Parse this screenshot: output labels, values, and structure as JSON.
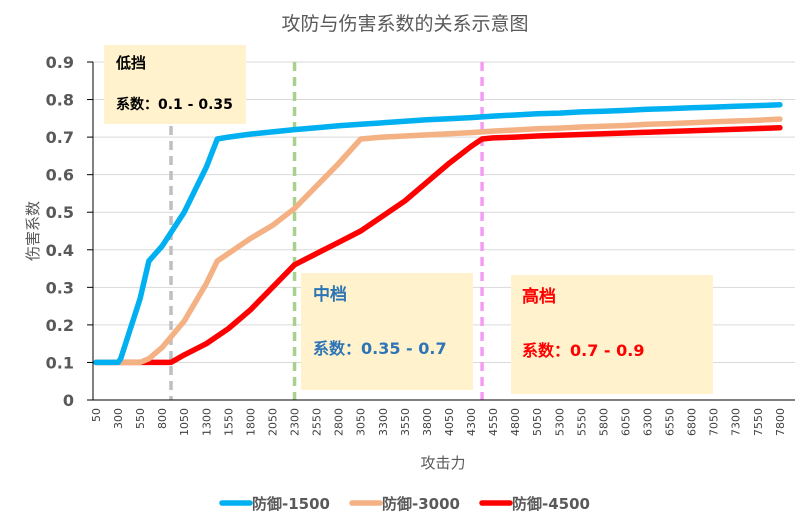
{
  "chart_data": {
    "type": "line",
    "title": "攻防与伤害系数的关系示意图",
    "xlabel": "攻击力",
    "ylabel": "伤害系数",
    "ylim": [
      0,
      0.9
    ],
    "yticks": [
      "0",
      "0.1",
      "0.2",
      "0.3",
      "0.4",
      "0.5",
      "0.6",
      "0.7",
      "0.8",
      "0.9"
    ],
    "ytick_values": [
      0,
      0.1,
      0.2,
      0.3,
      0.4,
      0.5,
      0.6,
      0.7,
      0.8,
      0.9
    ],
    "grid": true,
    "legend_position": "bottom",
    "categories": [
      "50",
      "300",
      "550",
      "800",
      "1050",
      "1300",
      "1550",
      "1800",
      "2050",
      "2300",
      "2550",
      "2800",
      "3050",
      "3300",
      "3550",
      "3800",
      "4050",
      "4300",
      "4550",
      "4800",
      "5050",
      "5300",
      "5550",
      "5800",
      "6050",
      "6300",
      "6550",
      "6800",
      "7050",
      "7300",
      "7550",
      "7800"
    ],
    "series": [
      {
        "name": "防御-1500",
        "color": "#00B0F0",
        "points": [
          [
            50,
            0.1
          ],
          [
            300,
            0.1
          ],
          [
            330,
            0.11
          ],
          [
            550,
            0.27
          ],
          [
            650,
            0.37
          ],
          [
            800,
            0.41
          ],
          [
            1050,
            0.5
          ],
          [
            1300,
            0.62
          ],
          [
            1425,
            0.695
          ],
          [
            1550,
            0.7
          ],
          [
            1800,
            0.708
          ],
          [
            2050,
            0.714
          ],
          [
            2300,
            0.72
          ],
          [
            2550,
            0.725
          ],
          [
            2800,
            0.73
          ],
          [
            3050,
            0.734
          ],
          [
            3300,
            0.738
          ],
          [
            3550,
            0.742
          ],
          [
            3800,
            0.746
          ],
          [
            4050,
            0.749
          ],
          [
            4300,
            0.752
          ],
          [
            4550,
            0.756
          ],
          [
            4800,
            0.759
          ],
          [
            5050,
            0.762
          ],
          [
            5300,
            0.764
          ],
          [
            5550,
            0.767
          ],
          [
            5800,
            0.769
          ],
          [
            6050,
            0.771
          ],
          [
            6300,
            0.774
          ],
          [
            6550,
            0.776
          ],
          [
            6800,
            0.778
          ],
          [
            7050,
            0.78
          ],
          [
            7300,
            0.782
          ],
          [
            7550,
            0.784
          ],
          [
            7800,
            0.786
          ]
        ]
      },
      {
        "name": "防御-3000",
        "color": "#F4B183",
        "points": [
          [
            50,
            0.1
          ],
          [
            550,
            0.1
          ],
          [
            650,
            0.11
          ],
          [
            800,
            0.14
          ],
          [
            1050,
            0.21
          ],
          [
            1300,
            0.31
          ],
          [
            1425,
            0.37
          ],
          [
            1550,
            0.39
          ],
          [
            1800,
            0.43
          ],
          [
            2050,
            0.465
          ],
          [
            2300,
            0.51
          ],
          [
            2550,
            0.57
          ],
          [
            2800,
            0.63
          ],
          [
            3050,
            0.695
          ],
          [
            3300,
            0.7
          ],
          [
            3550,
            0.703
          ],
          [
            3800,
            0.706
          ],
          [
            4050,
            0.709
          ],
          [
            4300,
            0.712
          ],
          [
            4550,
            0.716
          ],
          [
            4800,
            0.719
          ],
          [
            5050,
            0.722
          ],
          [
            5300,
            0.724
          ],
          [
            5550,
            0.727
          ],
          [
            5800,
            0.729
          ],
          [
            6050,
            0.731
          ],
          [
            6300,
            0.734
          ],
          [
            6550,
            0.736
          ],
          [
            6800,
            0.738
          ],
          [
            7050,
            0.741
          ],
          [
            7300,
            0.743
          ],
          [
            7550,
            0.745
          ],
          [
            7800,
            0.748
          ]
        ]
      },
      {
        "name": "防御-4500",
        "color": "#FF0000",
        "points": [
          [
            50,
            0.1
          ],
          [
            800,
            0.1
          ],
          [
            900,
            0.1
          ],
          [
            1050,
            0.12
          ],
          [
            1300,
            0.15
          ],
          [
            1550,
            0.19
          ],
          [
            1800,
            0.24
          ],
          [
            2050,
            0.3
          ],
          [
            2300,
            0.36
          ],
          [
            2550,
            0.39
          ],
          [
            2800,
            0.42
          ],
          [
            3050,
            0.45
          ],
          [
            3300,
            0.49
          ],
          [
            3550,
            0.53
          ],
          [
            3800,
            0.58
          ],
          [
            4050,
            0.63
          ],
          [
            4300,
            0.675
          ],
          [
            4425,
            0.695
          ],
          [
            4550,
            0.698
          ],
          [
            4800,
            0.7
          ],
          [
            5050,
            0.703
          ],
          [
            5300,
            0.705
          ],
          [
            5550,
            0.707
          ],
          [
            5800,
            0.709
          ],
          [
            6050,
            0.711
          ],
          [
            6300,
            0.713
          ],
          [
            6550,
            0.715
          ],
          [
            6800,
            0.717
          ],
          [
            7050,
            0.719
          ],
          [
            7300,
            0.721
          ],
          [
            7550,
            0.723
          ],
          [
            7800,
            0.725
          ]
        ]
      }
    ],
    "reference_lines": [
      {
        "name": "low-threshold",
        "x": 900,
        "color": "#BFBFBF"
      },
      {
        "name": "mid-threshold",
        "x": 2300,
        "color": "#A9D18E"
      },
      {
        "name": "high-threshold",
        "x": 4425,
        "color": "#F49CF4"
      }
    ],
    "annotations": [
      {
        "id": "low",
        "title": "低挡",
        "text": "系数：0.1 - 0.35",
        "color": "#000000"
      },
      {
        "id": "mid",
        "title": "中档",
        "text": "系数：0.35 - 0.7",
        "color": "#2E75B6"
      },
      {
        "id": "high",
        "title": "高档",
        "text": "系数：0.7 - 0.9",
        "color": "#FF0000"
      }
    ],
    "annotation_bg": "#FFF2CC"
  }
}
